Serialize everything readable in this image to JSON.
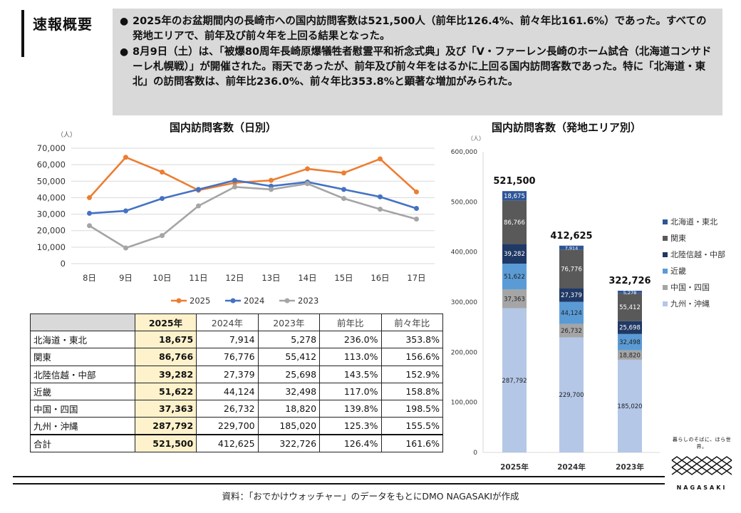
{
  "header": {
    "title": "速報概要"
  },
  "summary": {
    "bullets": [
      "2025年のお盆期間内の長崎市への国内訪問客数は521,500人（前年比126.4%、前々年比161.6%）であった。すべての発地エリアで、前年及び前々年を上回る結果となった。",
      "8月9日（土）は、「被爆80周年長崎原爆犠牲者慰霊平和祈念式典」及び「V・ファーレン長崎のホーム試合（北海道コンサドーレ札幌戦）」が開催された。雨天であったが、前年及び前々年をはるかに上回る国内訪問客数であった。特に「北海道・東北」の訪問客数は、前年比236.0%、前々年比353.8%と顕著な増加がみられた。"
    ]
  },
  "chart_data": [
    {
      "type": "line",
      "title": "国内訪問客数（日別）",
      "ylabel": "（人）",
      "categories": [
        "8日",
        "9日",
        "10日",
        "11日",
        "12日",
        "13日",
        "14日",
        "15日",
        "16日",
        "17日"
      ],
      "ylim": [
        0,
        70000
      ],
      "yticks": [
        "0",
        "10,000",
        "20,000",
        "30,000",
        "40,000",
        "50,000",
        "60,000",
        "70,000"
      ],
      "legend_position": "bottom",
      "series": [
        {
          "name": "2025",
          "color": "#ed7d31",
          "values": [
            40000,
            64500,
            55500,
            44500,
            49000,
            50500,
            57500,
            55000,
            63500,
            43500
          ]
        },
        {
          "name": "2024",
          "color": "#4472c4",
          "values": [
            30500,
            32000,
            39500,
            45000,
            50500,
            47000,
            49500,
            45000,
            40500,
            33500
          ]
        },
        {
          "name": "2023",
          "color": "#a5a5a5",
          "values": [
            23000,
            9500,
            17000,
            35000,
            46500,
            45000,
            48500,
            39500,
            33000,
            27000
          ]
        }
      ]
    },
    {
      "type": "bar",
      "stacked": true,
      "title": "国内訪問客数（発地エリア別）",
      "ylabel": "（人）",
      "categories": [
        "2025年",
        "2024年",
        "2023年"
      ],
      "ylim": [
        0,
        600000
      ],
      "yticks": [
        "0",
        "100,000",
        "200,000",
        "300,000",
        "400,000",
        "500,000",
        "600,000"
      ],
      "totals": [
        521500,
        412625,
        322726
      ],
      "total_labels": [
        "521,500",
        "412,625",
        "322,726"
      ],
      "legend_position": "right",
      "series": [
        {
          "name": "九州・沖縄",
          "color": "#b4c7e7",
          "values": [
            287792,
            229700,
            185020
          ],
          "labels": [
            "287,792",
            "229,700",
            "185,020"
          ]
        },
        {
          "name": "中国・四国",
          "color": "#a5a5a5",
          "values": [
            37363,
            26732,
            18820
          ],
          "labels": [
            "37,363",
            "26,732",
            "18,820"
          ]
        },
        {
          "name": "近畿",
          "color": "#5b9bd5",
          "values": [
            51622,
            44124,
            32498
          ],
          "labels": [
            "51,622",
            "44,124",
            "32,498"
          ]
        },
        {
          "name": "北陸信越・中部",
          "color": "#203864",
          "values": [
            39282,
            27379,
            25698
          ],
          "labels": [
            "39,282",
            "27,379",
            "25,698"
          ]
        },
        {
          "name": "関東",
          "color": "#595959",
          "values": [
            86766,
            76776,
            55412
          ],
          "labels": [
            "86,766",
            "76,776",
            "55,412"
          ]
        },
        {
          "name": "北海道・東北",
          "color": "#2e5597",
          "values": [
            18675,
            7914,
            5278
          ],
          "labels": [
            "18,675",
            "7,914",
            "5,278"
          ]
        }
      ]
    }
  ],
  "table": {
    "headers": [
      "",
      "2025年",
      "2024年",
      "2023年",
      "前年比",
      "前々年比"
    ],
    "rows": [
      [
        "北海道・東北",
        "18,675",
        "7,914",
        "5,278",
        "236.0%",
        "353.8%"
      ],
      [
        "関東",
        "86,766",
        "76,776",
        "55,412",
        "113.0%",
        "156.6%"
      ],
      [
        "北陸信越・中部",
        "39,282",
        "27,379",
        "25,698",
        "143.5%",
        "152.9%"
      ],
      [
        "近畿",
        "51,622",
        "44,124",
        "32,498",
        "117.0%",
        "158.8%"
      ],
      [
        "中国・四国",
        "37,363",
        "26,732",
        "18,820",
        "139.8%",
        "198.5%"
      ],
      [
        "九州・沖縄",
        "287,792",
        "229,700",
        "185,020",
        "125.3%",
        "155.5%"
      ]
    ],
    "total": [
      "合計",
      "521,500",
      "412,625",
      "322,726",
      "126.4%",
      "161.6%"
    ]
  },
  "footer": {
    "source": "資料：「おでかけウォッチャー」のデータをもとにDMO NAGASAKIが作成"
  },
  "logo": {
    "tagline": "暮らしのそばに、ほら世界。",
    "name": "NAGASAKI"
  }
}
